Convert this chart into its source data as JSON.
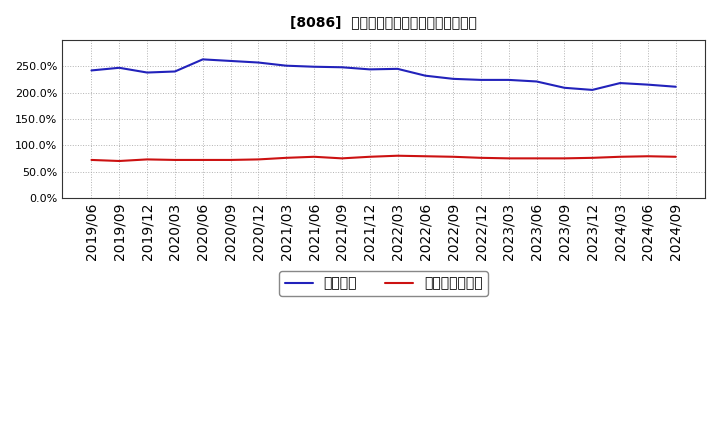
{
  "title": "[8086]  固定比率、固定長期適合率の推移",
  "x_labels": [
    "2019/06",
    "2019/09",
    "2019/12",
    "2020/03",
    "2020/06",
    "2020/09",
    "2020/12",
    "2021/03",
    "2021/06",
    "2021/09",
    "2021/12",
    "2022/03",
    "2022/06",
    "2022/09",
    "2022/12",
    "2023/03",
    "2023/06",
    "2023/09",
    "2023/12",
    "2024/03",
    "2024/06",
    "2024/09"
  ],
  "fixed_ratio": [
    242.0,
    247.0,
    238.0,
    240.0,
    263.0,
    260.0,
    257.0,
    251.0,
    249.0,
    248.0,
    244.0,
    245.0,
    232.0,
    226.0,
    224.0,
    224.0,
    221.0,
    209.0,
    205.0,
    218.0,
    215.0,
    211.0
  ],
  "fixed_long_ratio": [
    72.0,
    70.0,
    73.0,
    72.0,
    72.0,
    72.0,
    73.0,
    76.0,
    78.0,
    75.0,
    78.0,
    80.0,
    79.0,
    78.0,
    76.0,
    75.0,
    75.0,
    75.0,
    76.0,
    78.0,
    79.0,
    78.0
  ],
  "blue_color": "#2222bb",
  "red_color": "#cc1111",
  "bg_color": "#ffffff",
  "grid_color": "#aaaaaa",
  "plot_bg_color": "#ffffff",
  "ylim": [
    0,
    300
  ],
  "yticks": [
    0.0,
    50.0,
    100.0,
    150.0,
    200.0,
    250.0
  ],
  "legend_fixed_ratio": "固定比率",
  "legend_fixed_long_ratio": "固定長期適合率",
  "title_fontsize": 13,
  "axis_fontsize": 8,
  "legend_fontsize": 10
}
